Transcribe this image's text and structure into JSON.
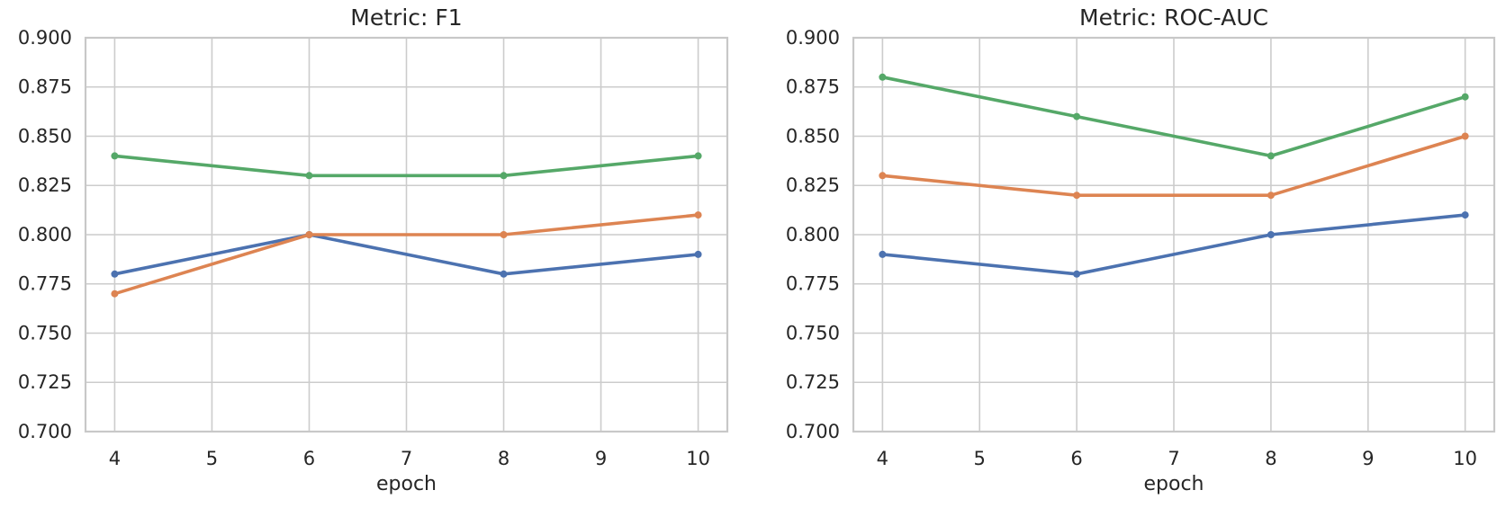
{
  "chart_data": [
    {
      "type": "line",
      "title": "Metric: F1",
      "xlabel": "epoch",
      "x": [
        4,
        6,
        8,
        10
      ],
      "series": [
        {
          "color": "#4C72B0",
          "values": [
            0.78,
            0.8,
            0.78,
            0.79
          ]
        },
        {
          "color": "#DD8452",
          "values": [
            0.77,
            0.8,
            0.8,
            0.81
          ]
        },
        {
          "color": "#55A868",
          "values": [
            0.84,
            0.83,
            0.83,
            0.84
          ]
        }
      ],
      "xticks": [
        "4",
        "5",
        "6",
        "7",
        "8",
        "9",
        "10"
      ],
      "yticks": [
        "0.700",
        "0.725",
        "0.750",
        "0.775",
        "0.800",
        "0.825",
        "0.850",
        "0.875",
        "0.900"
      ],
      "xlim": [
        3.7,
        10.3
      ],
      "ylim": [
        0.7,
        0.9
      ],
      "grid": true,
      "legend": "none"
    },
    {
      "type": "line",
      "title": "Metric: ROC-AUC",
      "xlabel": "epoch",
      "x": [
        4,
        6,
        8,
        10
      ],
      "series": [
        {
          "color": "#4C72B0",
          "values": [
            0.79,
            0.78,
            0.8,
            0.81
          ]
        },
        {
          "color": "#DD8452",
          "values": [
            0.83,
            0.82,
            0.82,
            0.85
          ]
        },
        {
          "color": "#55A868",
          "values": [
            0.88,
            0.86,
            0.84,
            0.87
          ]
        }
      ],
      "xticks": [
        "4",
        "5",
        "6",
        "7",
        "8",
        "9",
        "10"
      ],
      "yticks": [
        "0.700",
        "0.725",
        "0.750",
        "0.775",
        "0.800",
        "0.825",
        "0.850",
        "0.875",
        "0.900"
      ],
      "xlim": [
        3.7,
        10.3
      ],
      "ylim": [
        0.7,
        0.9
      ],
      "grid": true,
      "legend": "none"
    }
  ],
  "style": {
    "palette": [
      "#4C72B0",
      "#DD8452",
      "#55A868"
    ],
    "grid_color": "#cccccc",
    "spine_color": "#c8c8c8",
    "text_color": "#262626",
    "background": "#ffffff"
  }
}
